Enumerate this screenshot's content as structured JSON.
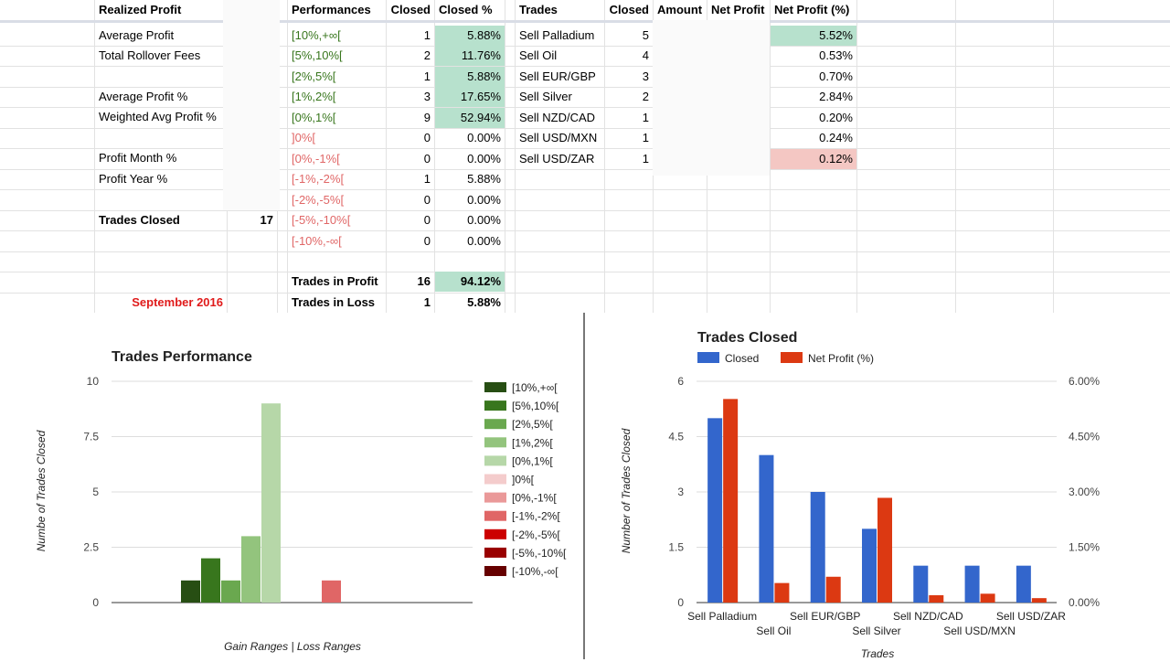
{
  "sheet": {
    "summary": {
      "header": "Realized Profit",
      "rows": [
        "Average Profit",
        "Total Rollover Fees",
        "",
        "Average Profit %",
        "Weighted Avg Profit %",
        "",
        "Profit Month %",
        "Profit Year %"
      ],
      "trades_closed_label": "Trades Closed",
      "trades_closed_value": "17",
      "month": "September 2016"
    },
    "performance": {
      "headers": [
        "Performances",
        "Closed",
        "Closed %"
      ],
      "rows": [
        {
          "range": "[10%,+∞[",
          "closed": "1",
          "pct": "5.88%",
          "kind": "gain"
        },
        {
          "range": "[5%,10%[",
          "closed": "2",
          "pct": "11.76%",
          "kind": "gain"
        },
        {
          "range": "[2%,5%[",
          "closed": "1",
          "pct": "5.88%",
          "kind": "gain"
        },
        {
          "range": "[1%,2%[",
          "closed": "3",
          "pct": "17.65%",
          "kind": "gain"
        },
        {
          "range": "[0%,1%[",
          "closed": "9",
          "pct": "52.94%",
          "kind": "gain"
        },
        {
          "range": "]0%[",
          "closed": "0",
          "pct": "0.00%",
          "kind": "loss"
        },
        {
          "range": "[0%,-1%[",
          "closed": "0",
          "pct": "0.00%",
          "kind": "loss"
        },
        {
          "range": "[-1%,-2%[",
          "closed": "1",
          "pct": "5.88%",
          "kind": "loss"
        },
        {
          "range": "[-2%,-5%[",
          "closed": "0",
          "pct": "0.00%",
          "kind": "loss"
        },
        {
          "range": "[-5%,-10%[",
          "closed": "0",
          "pct": "0.00%",
          "kind": "loss"
        },
        {
          "range": "[-10%,-∞[",
          "closed": "0",
          "pct": "0.00%",
          "kind": "loss"
        }
      ],
      "profit_label": "Trades in Profit",
      "profit_closed": "16",
      "profit_pct": "94.12%",
      "loss_label": "Trades in Loss",
      "loss_closed": "1",
      "loss_pct": "5.88%"
    },
    "trades": {
      "headers": [
        "Trades",
        "Closed",
        "Amount",
        "Net Profit",
        "Net Profit (%)"
      ],
      "rows": [
        {
          "name": "Sell Palladium",
          "closed": "5",
          "pct": "5.52%"
        },
        {
          "name": "Sell Oil",
          "closed": "4",
          "pct": "0.53%"
        },
        {
          "name": "Sell EUR/GBP",
          "closed": "3",
          "pct": "0.70%"
        },
        {
          "name": "Sell Silver",
          "closed": "2",
          "pct": "2.84%"
        },
        {
          "name": "Sell NZD/CAD",
          "closed": "1",
          "pct": "0.20%"
        },
        {
          "name": "Sell USD/MXN",
          "closed": "1",
          "pct": "0.24%"
        },
        {
          "name": "Sell USD/ZAR",
          "closed": "1",
          "pct": "0.12%"
        }
      ]
    },
    "colors": {
      "green_fill": "#b7e1cd",
      "red_fill": "#f4c7c3",
      "header_band": "#d9dde6"
    }
  },
  "chart_data": [
    {
      "type": "bar",
      "title": "Trades Performance",
      "xlabel": "Gain Ranges | Loss Ranges",
      "ylabel": "Numbe of Trades Closed",
      "ylim": [
        0,
        10
      ],
      "yticks": [
        "0",
        "2.5",
        "5",
        "7.5",
        "10"
      ],
      "ytick_values": [
        0,
        2.5,
        5,
        7.5,
        10
      ],
      "grid": true,
      "legend": "right",
      "series": [
        {
          "name": "[10%,+∞[",
          "value": 1,
          "color": "#274e13"
        },
        {
          "name": "[5%,10%[",
          "value": 2,
          "color": "#38761d"
        },
        {
          "name": "[2%,5%[",
          "value": 1,
          "color": "#6aa84f"
        },
        {
          "name": "[1%,2%[",
          "value": 3,
          "color": "#93c47d"
        },
        {
          "name": "[0%,1%[",
          "value": 9,
          "color": "#b6d7a8"
        },
        {
          "name": "]0%[",
          "value": 0,
          "color": "#f4cccc"
        },
        {
          "name": "[0%,-1%[",
          "value": 0,
          "color": "#ea9999"
        },
        {
          "name": "[-1%,-2%[",
          "value": 1,
          "color": "#e06666"
        },
        {
          "name": "[-2%,-5%[",
          "value": 0,
          "color": "#cc0000"
        },
        {
          "name": "[-5%,-10%[",
          "value": 0,
          "color": "#990000"
        },
        {
          "name": "[-10%,-∞[",
          "value": 0,
          "color": "#660000"
        }
      ]
    },
    {
      "type": "bar",
      "title": "Trades Closed",
      "xlabel": "Trades",
      "ylabel": "Number of Trades Closed",
      "categories": [
        "Sell Palladium",
        "Sell Oil",
        "Sell EUR/GBP",
        "Sell Silver",
        "Sell NZD/CAD",
        "Sell USD/MXN",
        "Sell USD/ZAR"
      ],
      "ylim": [
        0,
        6
      ],
      "yticks": [
        "0",
        "1.5",
        "3",
        "4.5",
        "6"
      ],
      "ytick_values": [
        0,
        1.5,
        3,
        4.5,
        6
      ],
      "y2lim": [
        0,
        6
      ],
      "y2ticks": [
        "0.00%",
        "1.50%",
        "3.00%",
        "4.50%",
        "6.00%"
      ],
      "grid": true,
      "legend": "top-left",
      "series": [
        {
          "name": "Closed",
          "axis": "left",
          "color": "#3366cc",
          "values": [
            5,
            4,
            3,
            2,
            1,
            1,
            1
          ]
        },
        {
          "name": "Net Profit (%)",
          "axis": "right",
          "color": "#dc3912",
          "values": [
            5.52,
            0.53,
            0.7,
            2.84,
            0.2,
            0.24,
            0.12
          ]
        }
      ]
    }
  ]
}
